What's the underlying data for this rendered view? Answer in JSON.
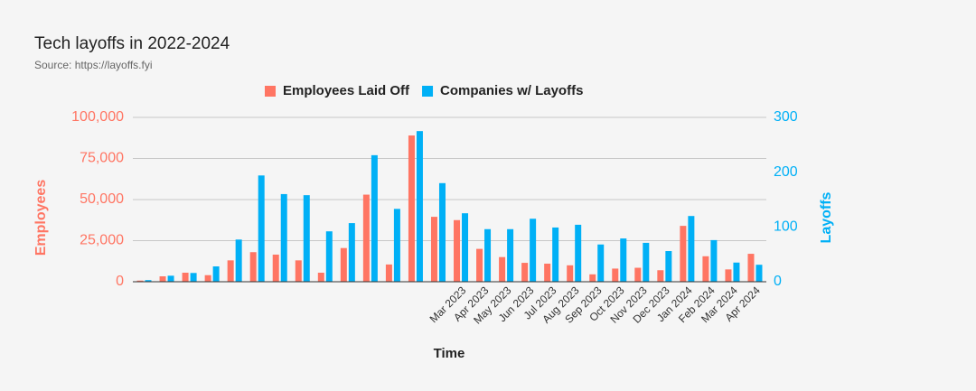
{
  "chart_data": {
    "type": "bar",
    "title": "Tech layoffs in 2022-2024",
    "subtitle": "Source: https://layoffs.fyi",
    "x_label": "Time",
    "y_label": "Employees",
    "y2_label": "Layoffs",
    "categories": [
      null,
      null,
      null,
      null,
      null,
      null,
      null,
      null,
      null,
      null,
      null,
      null,
      null,
      null,
      "Mar 2023",
      "Apr 2023",
      "May 2023",
      "Jun 2023",
      "Jul 2023",
      "Aug 2023",
      "Sep 2023",
      "Oct 2023",
      "Nov 2023",
      "Dec 2023",
      "Jan 2024",
      "Feb 2024",
      "Mar 2024",
      "Apr 2024"
    ],
    "series": [
      {
        "name": "Employees Laid Off",
        "color": "#ff7563",
        "axis": "y",
        "values": [
          700,
          3300,
          5500,
          4000,
          13000,
          18000,
          16500,
          13000,
          5500,
          20500,
          53000,
          10500,
          89000,
          39500,
          37500,
          20000,
          15000,
          11500,
          11000,
          10000,
          4500,
          8000,
          8500,
          7000,
          34000,
          15500,
          7500,
          17000
        ]
      },
      {
        "name": "Companies w/ Layoffs",
        "color": "#00b0f6",
        "axis": "y2",
        "values": [
          3,
          11,
          16,
          28,
          77,
          194,
          160,
          158,
          92,
          107,
          231,
          133,
          275,
          180,
          125,
          96,
          96,
          115,
          99,
          104,
          68,
          79,
          71,
          56,
          120,
          76,
          35,
          31
        ]
      }
    ],
    "ylim": [
      0,
      100000
    ],
    "yticks": [
      0,
      {
        "value": 25000,
        "label": "25,000"
      },
      {
        "value": 50000,
        "label": "50,000"
      },
      {
        "value": 75000,
        "label": "75,000"
      },
      {
        "value": 100000,
        "label": "100,000"
      }
    ],
    "y2lim": [
      0,
      300
    ],
    "y2ticks": [
      0,
      100,
      200,
      300
    ],
    "grid": true,
    "legend": "top"
  }
}
